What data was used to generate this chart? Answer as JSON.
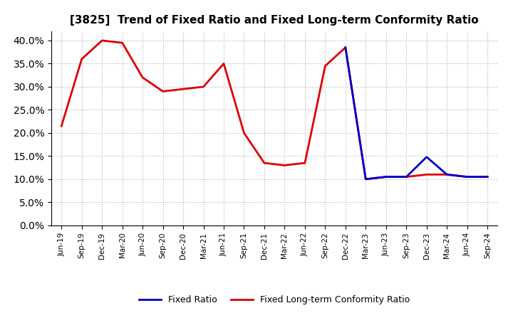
{
  "title": "[3825]  Trend of Fixed Ratio and Fixed Long-term Conformity Ratio",
  "x_labels": [
    "Jun-19",
    "Sep-19",
    "Dec-19",
    "Mar-20",
    "Jun-20",
    "Sep-20",
    "Dec-20",
    "Mar-21",
    "Jun-21",
    "Sep-21",
    "Dec-21",
    "Mar-22",
    "Jun-22",
    "Sep-22",
    "Dec-22",
    "Mar-23",
    "Jun-23",
    "Sep-23",
    "Dec-23",
    "Mar-24",
    "Jun-24",
    "Sep-24"
  ],
  "fixed_ratio": [
    null,
    null,
    null,
    null,
    null,
    null,
    null,
    null,
    null,
    null,
    null,
    null,
    null,
    null,
    38.5,
    10.0,
    10.5,
    10.5,
    14.8,
    11.0,
    10.5,
    10.5
  ],
  "fixed_longterm": [
    21.5,
    36.0,
    40.0,
    39.5,
    32.0,
    29.0,
    29.5,
    30.0,
    35.0,
    20.0,
    13.5,
    13.0,
    13.5,
    34.5,
    38.5,
    10.0,
    10.5,
    10.5,
    11.0,
    11.0,
    10.5,
    10.5
  ],
  "fixed_ratio_color": "#0000cd",
  "fixed_longterm_color": "#dd0000",
  "ylim": [
    0,
    42
  ],
  "yticks": [
    0,
    5,
    10,
    15,
    20,
    25,
    30,
    35,
    40
  ],
  "background_color": "#ffffff",
  "grid_color": "#b0b0b0",
  "legend_fixed_ratio": "Fixed Ratio",
  "legend_fixed_longterm": "Fixed Long-term Conformity Ratio",
  "line_width": 2.0,
  "figsize": [
    7.2,
    4.4
  ],
  "dpi": 100
}
